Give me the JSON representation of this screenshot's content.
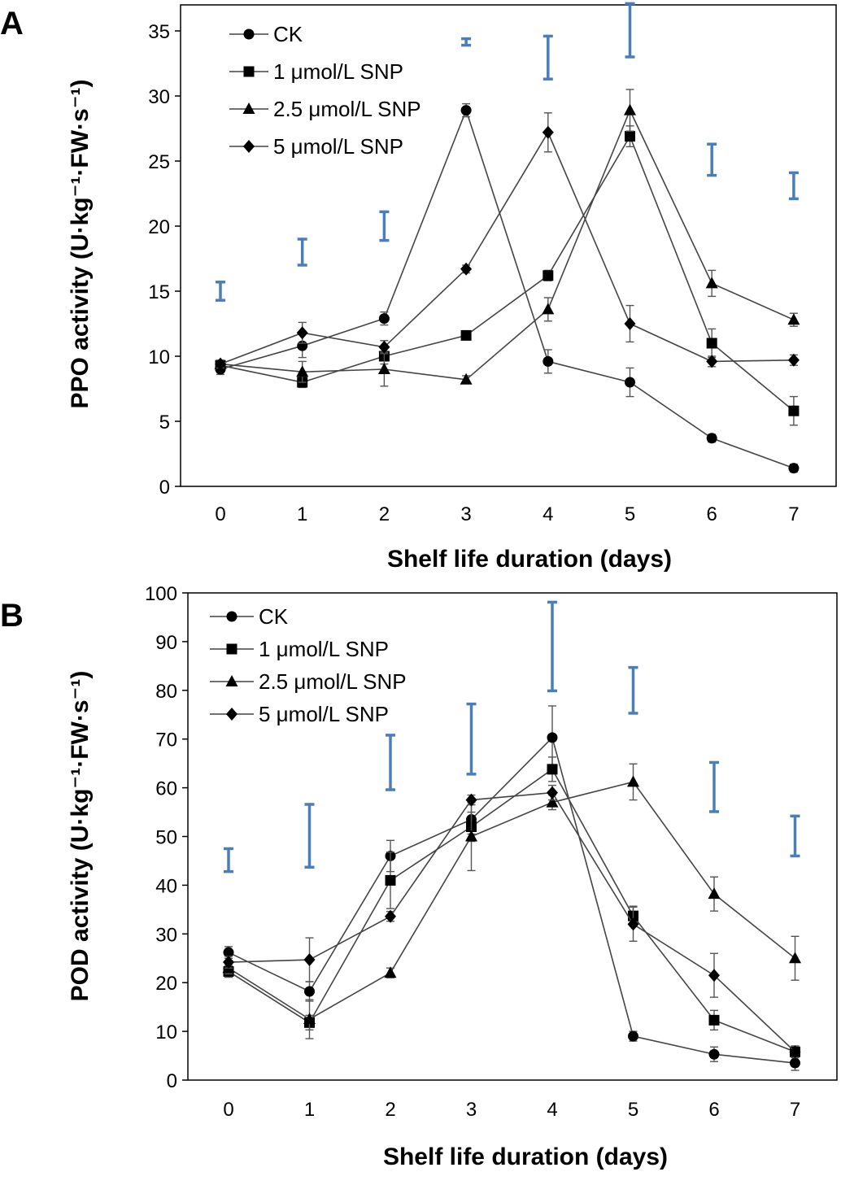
{
  "chart_data": [
    {
      "panel": "A",
      "type": "line",
      "xlabel": "Shelf life duration (days)",
      "ylabel": "PPO activity (U·kg⁻¹·FW·s⁻¹)",
      "x": [
        0,
        1,
        2,
        3,
        4,
        5,
        6,
        7
      ],
      "x_tick_labels": [
        "0",
        "1",
        "2",
        "3",
        "4",
        "5",
        "6",
        "7"
      ],
      "ylim": [
        0,
        37
      ],
      "y_ticks": [
        0,
        5,
        10,
        15,
        20,
        25,
        30,
        35
      ],
      "y_tick_labels": [
        "0",
        "5",
        "10",
        "15",
        "20",
        "25",
        "30",
        "35"
      ],
      "legend_position": "top-left",
      "series": [
        {
          "name": "CK",
          "marker": "circle",
          "values": [
            9.0,
            10.8,
            12.9,
            28.9,
            9.6,
            8.0,
            3.7,
            1.4
          ],
          "errors": [
            0.4,
            0.9,
            0.5,
            0.5,
            0.9,
            1.1,
            0.3,
            0.3
          ]
        },
        {
          "name": "1 μmol/L SNP",
          "marker": "square",
          "values": [
            9.3,
            8.0,
            10.0,
            11.6,
            16.2,
            26.9,
            11.0,
            5.8
          ],
          "errors": [
            0.3,
            0.4,
            0.6,
            0.3,
            0.4,
            0.8,
            1.1,
            1.1
          ]
        },
        {
          "name": "2.5 μmol/L SNP",
          "marker": "triangle",
          "values": [
            9.4,
            8.8,
            9.0,
            8.2,
            13.6,
            28.9,
            15.6,
            12.8
          ],
          "errors": [
            0.3,
            0.8,
            1.3,
            0.3,
            0.9,
            1.6,
            1.0,
            0.5
          ]
        },
        {
          "name": "5 μmol/L SNP",
          "marker": "diamond",
          "values": [
            9.4,
            11.8,
            10.7,
            16.7,
            27.2,
            12.5,
            9.6,
            9.7
          ],
          "errors": [
            0.3,
            0.8,
            0.5,
            0.3,
            1.5,
            1.4,
            0.4,
            0.4
          ]
        }
      ],
      "lsd_bars": [
        {
          "x": 0,
          "low": 14.3,
          "high": 15.7
        },
        {
          "x": 1,
          "low": 17.0,
          "high": 19.0
        },
        {
          "x": 2,
          "low": 18.9,
          "high": 21.1
        },
        {
          "x": 3,
          "low": 33.9,
          "high": 34.4
        },
        {
          "x": 4,
          "low": 31.3,
          "high": 34.6
        },
        {
          "x": 5,
          "low": 33.0,
          "high": 37.1
        },
        {
          "x": 6,
          "low": 23.9,
          "high": 26.3
        },
        {
          "x": 7,
          "low": 22.1,
          "high": 24.1
        }
      ]
    },
    {
      "panel": "B",
      "type": "line",
      "xlabel": "Shelf life duration (days)",
      "ylabel": "POD activity (U·kg⁻¹·FW·s⁻¹)",
      "x": [
        0,
        1,
        2,
        3,
        4,
        5,
        6,
        7
      ],
      "x_tick_labels": [
        "0",
        "1",
        "2",
        "3",
        "4",
        "5",
        "6",
        "7"
      ],
      "ylim": [
        0,
        100
      ],
      "y_ticks": [
        0,
        10,
        20,
        30,
        40,
        50,
        60,
        70,
        80,
        90,
        100
      ],
      "y_tick_labels": [
        "0",
        "10",
        "20",
        "30",
        "40",
        "50",
        "60",
        "70",
        "80",
        "90",
        "100"
      ],
      "legend_position": "top-left",
      "series": [
        {
          "name": "CK",
          "marker": "circle",
          "values": [
            26.2,
            18.2,
            46.0,
            53.5,
            70.3,
            9.0,
            5.3,
            3.5
          ],
          "errors": [
            1.2,
            2.0,
            3.2,
            3.0,
            6.5,
            1.0,
            1.5,
            1.5
          ]
        },
        {
          "name": "1 μmol/L SNP",
          "marker": "square",
          "values": [
            22.3,
            11.8,
            41.0,
            52.0,
            63.8,
            33.7,
            12.3,
            5.8
          ],
          "errors": [
            1.2,
            1.5,
            5.8,
            3.0,
            2.5,
            2.0,
            2.0,
            1.2
          ]
        },
        {
          "name": "2.5 μmol/L SNP",
          "marker": "triangle",
          "values": [
            23.0,
            12.5,
            22.0,
            50.0,
            57.0,
            61.2,
            38.2,
            25.0
          ],
          "errors": [
            1.2,
            4.0,
            1.0,
            7.0,
            1.5,
            3.7,
            3.5,
            4.5
          ]
        },
        {
          "name": "5 μmol/L SNP",
          "marker": "diamond",
          "values": [
            24.2,
            24.7,
            33.6,
            57.5,
            59.0,
            32.0,
            21.5,
            5.8
          ],
          "errors": [
            1.2,
            4.5,
            1.0,
            1.0,
            1.5,
            3.5,
            4.5,
            1.2
          ]
        }
      ],
      "lsd_bars": [
        {
          "x": 0,
          "low": 42.8,
          "high": 47.5
        },
        {
          "x": 1,
          "low": 43.7,
          "high": 56.6
        },
        {
          "x": 2,
          "low": 59.6,
          "high": 70.8
        },
        {
          "x": 3,
          "low": 62.8,
          "high": 77.2
        },
        {
          "x": 4,
          "low": 79.9,
          "high": 98.1
        },
        {
          "x": 5,
          "low": 75.3,
          "high": 84.7
        },
        {
          "x": 6,
          "low": 55.1,
          "high": 65.2
        },
        {
          "x": 7,
          "low": 46.0,
          "high": 54.2
        }
      ]
    }
  ]
}
